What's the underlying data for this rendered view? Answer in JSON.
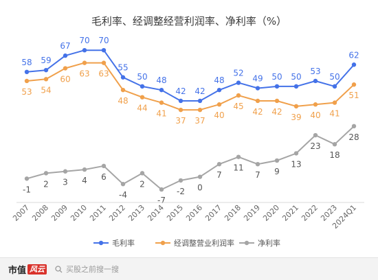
{
  "chart_data": {
    "type": "line",
    "title": "毛利率、经调整经营利润率、净利率（%）",
    "categories": [
      "2007",
      "2008",
      "2009",
      "2010",
      "2011",
      "2012",
      "2013",
      "2014",
      "2015",
      "2016",
      "2017",
      "2018",
      "2019",
      "2020",
      "2021",
      "2022",
      "2023",
      "2024Q1"
    ],
    "series": [
      {
        "name": "毛利率",
        "color": "#4472e8",
        "values": [
          58,
          59,
          67,
          70,
          70,
          55,
          50,
          48,
          42,
          42,
          48,
          52,
          49,
          50,
          50,
          53,
          50,
          62
        ],
        "labels": [
          "58",
          "59",
          "67",
          "70",
          "70",
          "55",
          "50",
          "48",
          "42",
          "42",
          "48",
          "52",
          "49",
          "50",
          "50",
          "53",
          "50",
          "62"
        ]
      },
      {
        "name": "经调整营业利润率",
        "color": "#f0a04b",
        "values": [
          53,
          54,
          60,
          63,
          63,
          48,
          44,
          41,
          37,
          37,
          40,
          45,
          42,
          42,
          39,
          40,
          41,
          51
        ],
        "labels": [
          "53",
          "54",
          "60",
          "63",
          "63",
          "48",
          "44",
          "41",
          "37",
          "37",
          "40",
          "45",
          "42",
          "42",
          "39",
          "40",
          "41",
          "51"
        ]
      },
      {
        "name": "净利率",
        "color": "#a5a5a5",
        "values": [
          -1,
          2,
          3,
          4,
          6,
          -4,
          2,
          -7,
          -2,
          0,
          7,
          11,
          7,
          9,
          13,
          23,
          18,
          28
        ],
        "labels": [
          "-1",
          "2",
          "3",
          "4",
          "6",
          "-4",
          "2",
          "-7",
          "-2",
          "0",
          "7",
          "11",
          "7",
          "9",
          "13",
          "23",
          "18",
          "28"
        ]
      }
    ],
    "ylim": [
      -10,
      75
    ],
    "grid": false,
    "legend_position": "bottom"
  },
  "footer": {
    "brand": "市值",
    "brand_mark": "风云",
    "search_text": "买股之前搜一搜"
  }
}
